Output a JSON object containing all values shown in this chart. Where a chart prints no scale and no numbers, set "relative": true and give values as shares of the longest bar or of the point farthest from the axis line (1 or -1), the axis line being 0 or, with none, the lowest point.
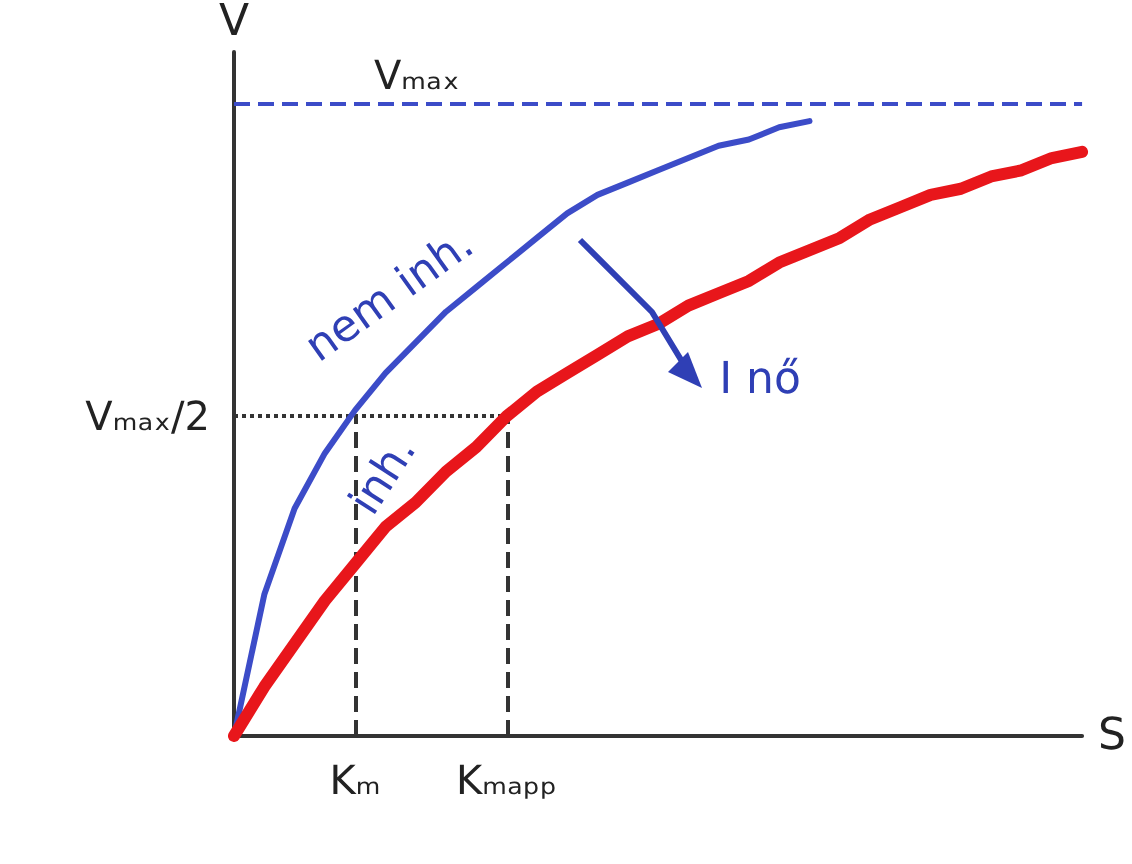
{
  "chart_data": {
    "type": "line",
    "xlabel": "S",
    "ylabel": "V",
    "relative": true,
    "categories": [
      null,
      null,
      null,
      null,
      "Kₘ",
      null,
      null,
      null,
      null,
      "Kₘₐₚₚ",
      null,
      null,
      null,
      null,
      null,
      null,
      null,
      null,
      null,
      null,
      null,
      null,
      null,
      null,
      null,
      null,
      null,
      null,
      null
    ],
    "grid": false,
    "marker": "none",
    "line_style": "solid",
    "series": [
      {
        "color": "#3c4cc8",
        "values": [
          0,
          0.23,
          0.37,
          0.46,
          0.53,
          0.59,
          0.64,
          0.69,
          0.73,
          0.77,
          0.81,
          0.85,
          0.88,
          0.9,
          0.92,
          0.94,
          0.96,
          0.97,
          0.99,
          1,
          null,
          null,
          null,
          null,
          null,
          null,
          null,
          null,
          null
        ]
      },
      {
        "color": "#e8161b",
        "values": [
          0,
          0.08,
          0.15,
          0.22,
          0.28,
          0.34,
          0.38,
          0.43,
          0.47,
          0.52,
          0.56,
          0.59,
          0.62,
          0.65,
          0.67,
          0.7,
          0.72,
          0.74,
          0.77,
          0.79,
          0.81,
          0.84,
          0.86,
          0.88,
          0.89,
          0.91,
          0.92,
          0.94,
          0.95
        ]
      }
    ],
    "ref_lines": [
      {
        "axis": "y",
        "value": 1.03,
        "label": "Vₘₐₓ",
        "color": "#3c4cc8",
        "line_style": "dashed"
      },
      {
        "axis": "y",
        "value": 0.52,
        "label": "Vₘₐₓ/2",
        "color": "#333333",
        "line_style": "dotted"
      },
      {
        "axis": "x",
        "value": "Kₘ",
        "label": null,
        "color": "#333333",
        "line_style": "dashed"
      },
      {
        "axis": "x",
        "value": "Kₘₐₚₚ",
        "label": null,
        "color": "#333333",
        "line_style": "dashed"
      }
    ],
    "annotations": [
      "nem inh.",
      "inh.",
      "I nő"
    ]
  }
}
